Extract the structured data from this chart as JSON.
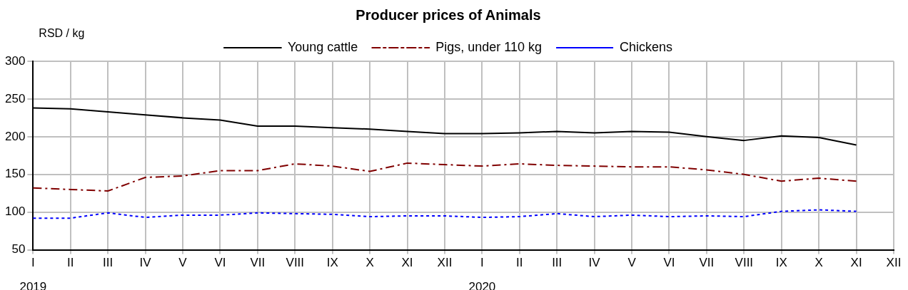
{
  "chart_data": {
    "type": "line",
    "title": "Producer prices of Animals",
    "ylabel": "RSD / kg",
    "categories": [
      "I",
      "II",
      "III",
      "IV",
      "V",
      "VI",
      "VII",
      "VIII",
      "IX",
      "X",
      "XI",
      "XII",
      "I",
      "II",
      "III",
      "IV",
      "V",
      "VI",
      "VII",
      "VIII",
      "IX",
      "X",
      "XI",
      "XII"
    ],
    "series": [
      {
        "name": "Young cattle",
        "color": "#000000",
        "line_style": "solid",
        "values": [
          238,
          237,
          233,
          229,
          225,
          222,
          214,
          214,
          212,
          210,
          207,
          204,
          204,
          205,
          207,
          205,
          207,
          206,
          200,
          195,
          201,
          199,
          189,
          null
        ]
      },
      {
        "name": "Pigs, under 110 kg",
        "color": "#800000",
        "line_style": "dashed",
        "values": [
          132,
          130,
          128,
          146,
          148,
          155,
          155,
          164,
          161,
          154,
          165,
          163,
          161,
          164,
          162,
          161,
          160,
          160,
          156,
          150,
          141,
          145,
          141,
          null
        ]
      },
      {
        "name": "Chickens",
        "color": "#0000ff",
        "line_style": "dotted",
        "values": [
          92,
          92,
          99,
          93,
          96,
          96,
          99,
          98,
          97,
          94,
          95,
          95,
          93,
          94,
          98,
          94,
          96,
          94,
          95,
          94,
          101,
          103,
          101,
          null
        ]
      }
    ],
    "ylim": [
      50,
      300
    ],
    "yticks": [
      50,
      100,
      150,
      200,
      250,
      300
    ],
    "grid": true,
    "legend": "top",
    "marker": "none",
    "annotations": [
      "2019",
      "2020"
    ]
  }
}
